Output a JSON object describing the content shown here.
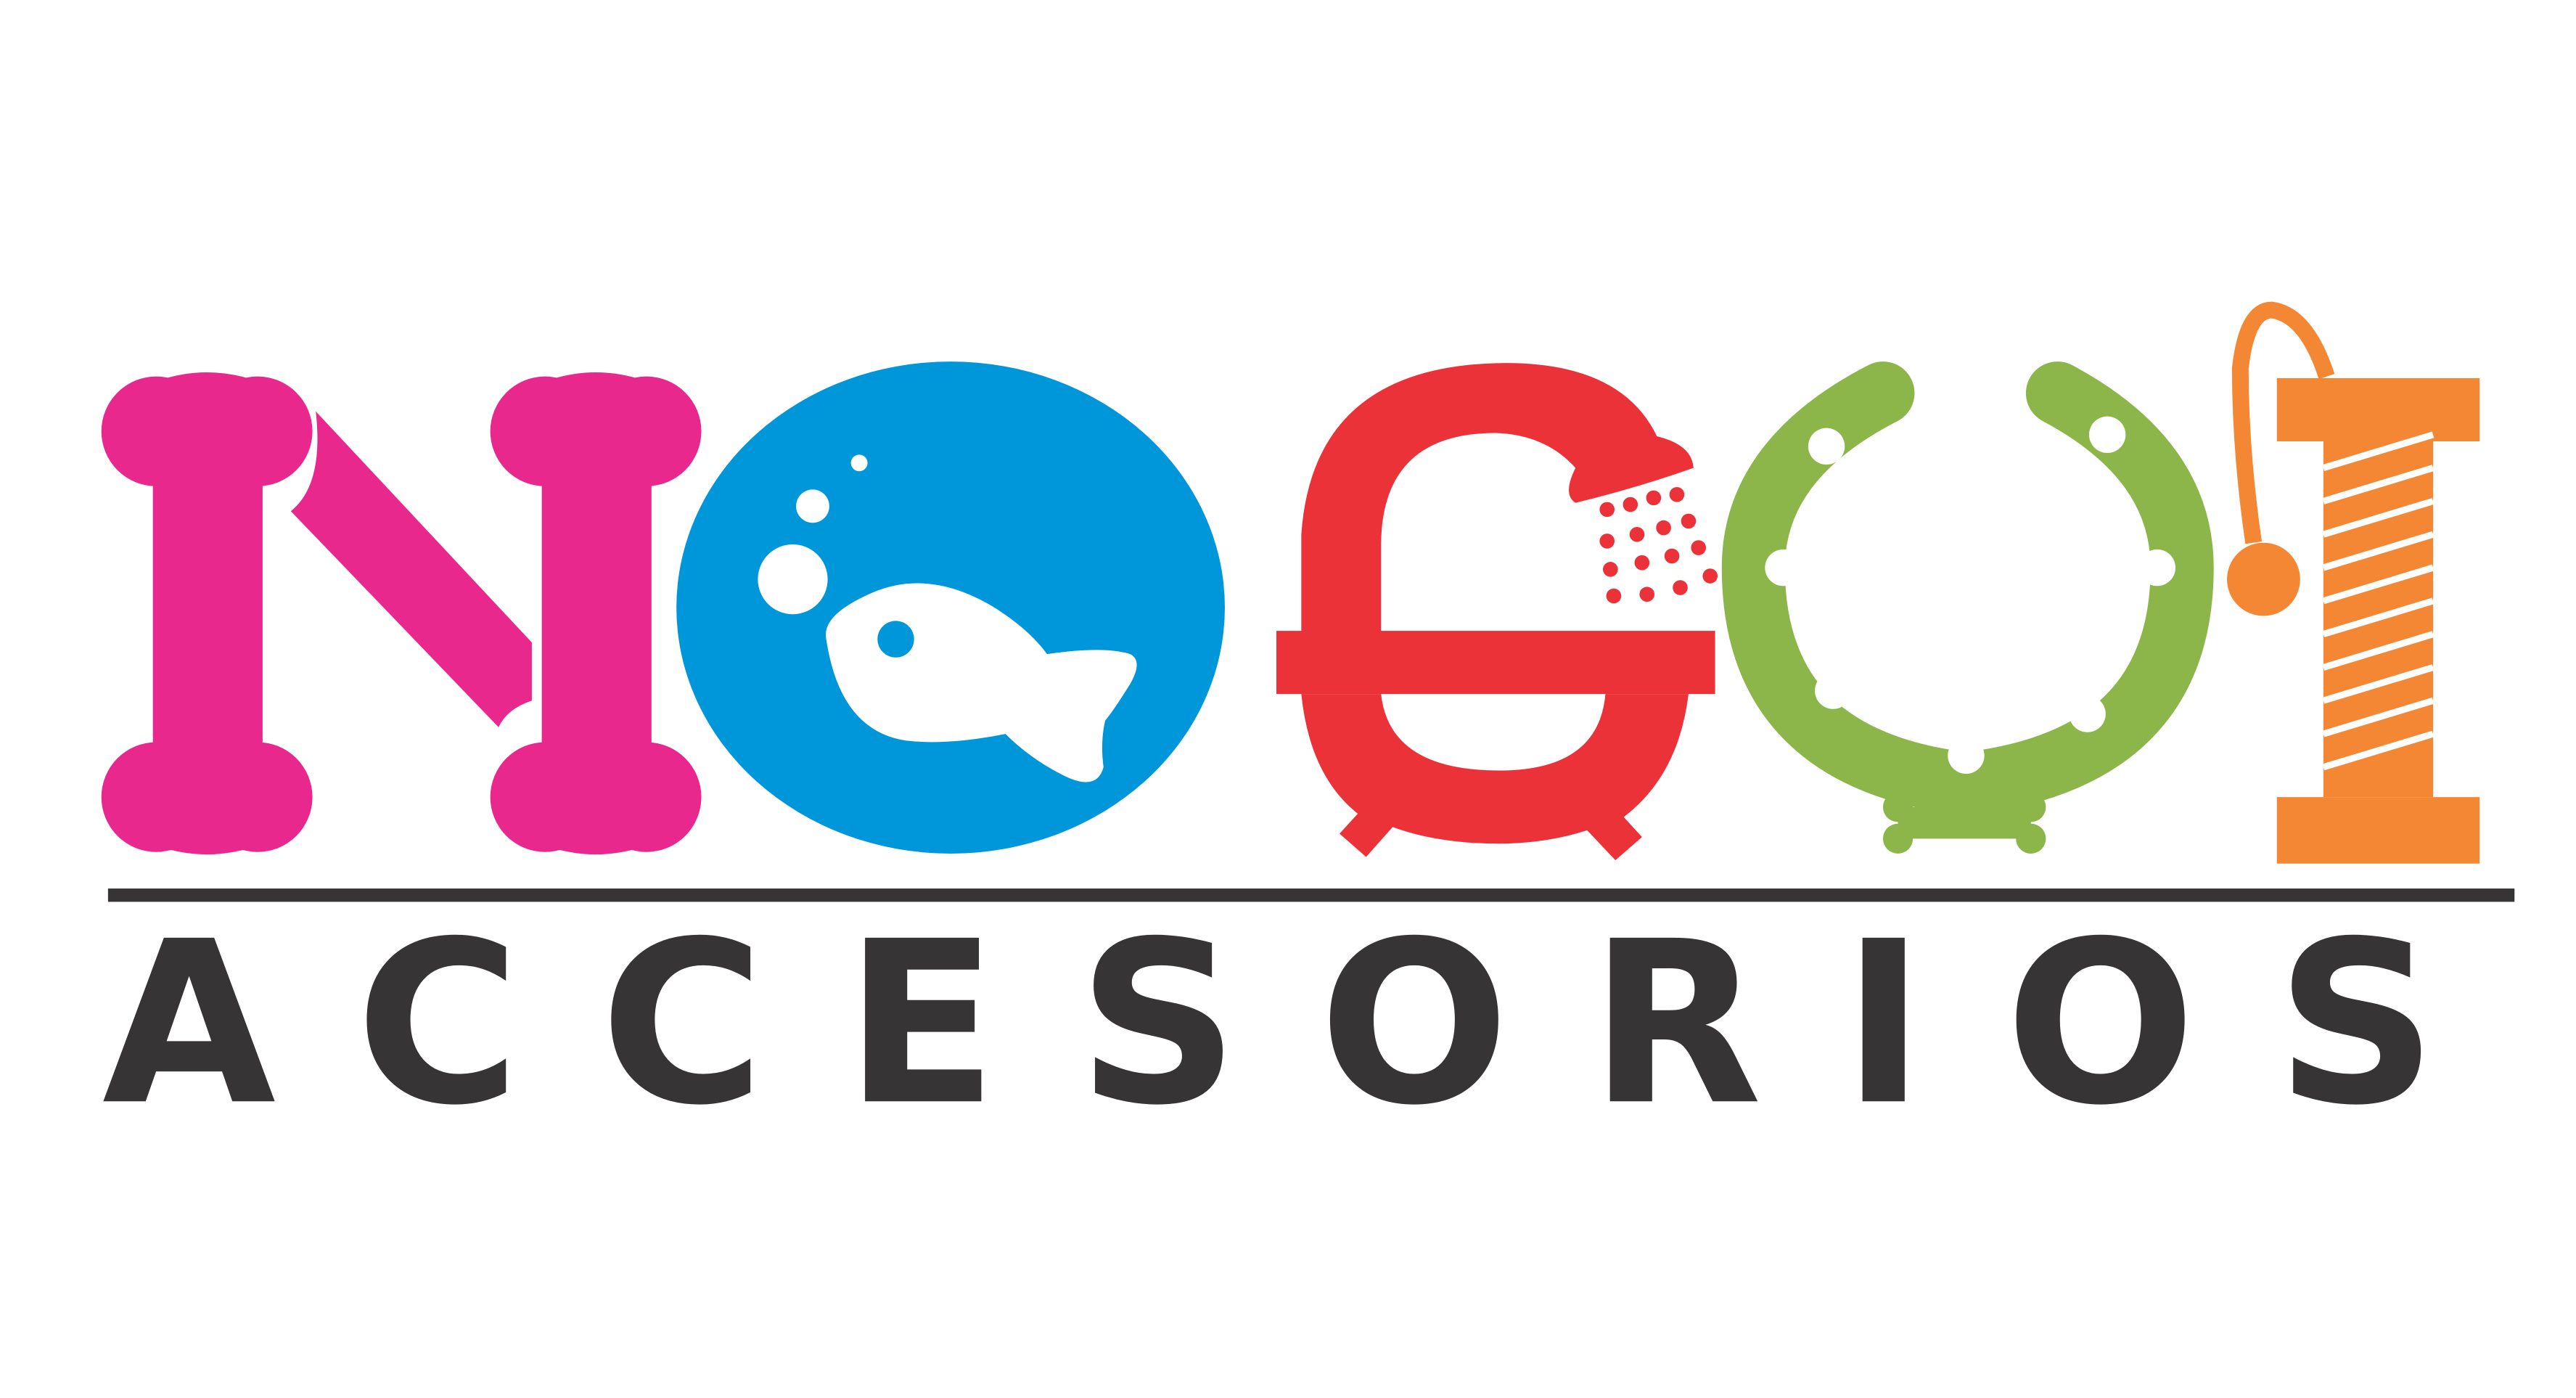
{
  "logo": {
    "wordmark": "NOGUI",
    "tagline": "ACCESORIOS",
    "colors": {
      "magenta": "#E8288C",
      "blue": "#0096DA",
      "red": "#EB3238",
      "green": "#8DB64A",
      "orange": "#F48734",
      "dark": "#363435",
      "white": "#FFFFFF"
    },
    "icons": [
      "bone-letter-n",
      "fishbowl-letter-o",
      "shower-letter-g",
      "horseshoe-letter-u",
      "scratching-post-letter-i"
    ]
  }
}
